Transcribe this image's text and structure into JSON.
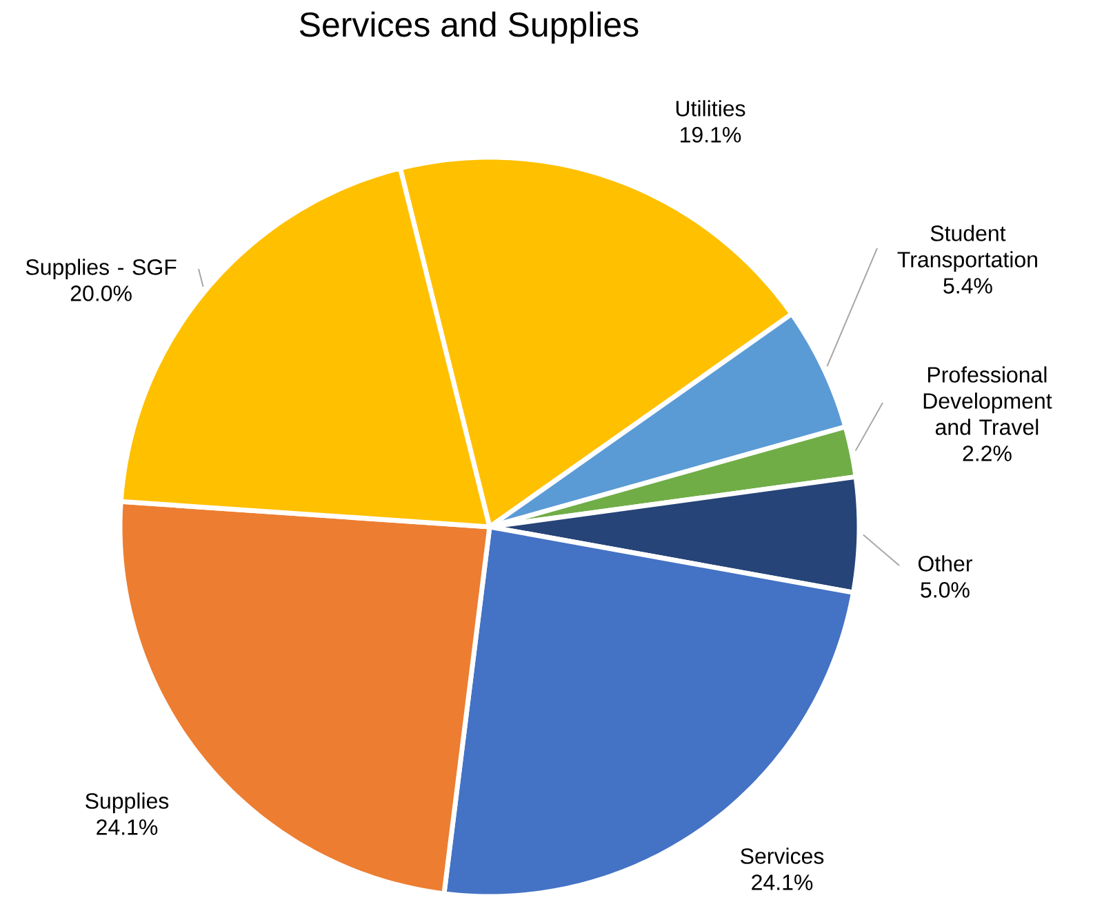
{
  "chart_data": {
    "type": "pie",
    "title": "Services and Supplies",
    "categories": [
      "Utilities",
      "Student Transportation",
      "Professional Development and Travel",
      "Other",
      "Services",
      "Supplies",
      "Supplies - SGF"
    ],
    "values": [
      19.1,
      5.4,
      2.2,
      5.0,
      24.1,
      24.1,
      20.0
    ],
    "colors": [
      "#ffc000",
      "#5b9bd5",
      "#70ad47",
      "#264478",
      "#4472c4",
      "#ed7d31",
      "#ffc000"
    ],
    "value_labels": [
      "19.1%",
      "5.4%",
      "2.2%",
      "5.0%",
      "24.1%",
      "24.1%",
      "20.0%"
    ]
  }
}
